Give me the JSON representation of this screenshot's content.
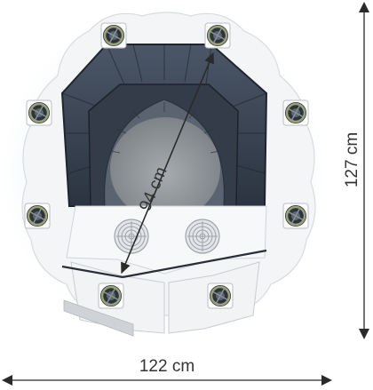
{
  "diagram": {
    "dimensions": {
      "diagonal": "94 cm",
      "height": "127 cm",
      "width": "122 cm"
    },
    "colors": {
      "frame": "#f4f5f7",
      "glow": "#cfe8f6",
      "panels": "#3b4656",
      "panels_dark": "#232b36",
      "inner_ring": "#5a6470",
      "floor": "#8e9398",
      "dimension_line": "#2a2a2a",
      "fan_ring": "#9aa27a"
    },
    "icons": {
      "corner_fan": "fan-icon",
      "center_fan": "fan-grille-icon"
    }
  }
}
